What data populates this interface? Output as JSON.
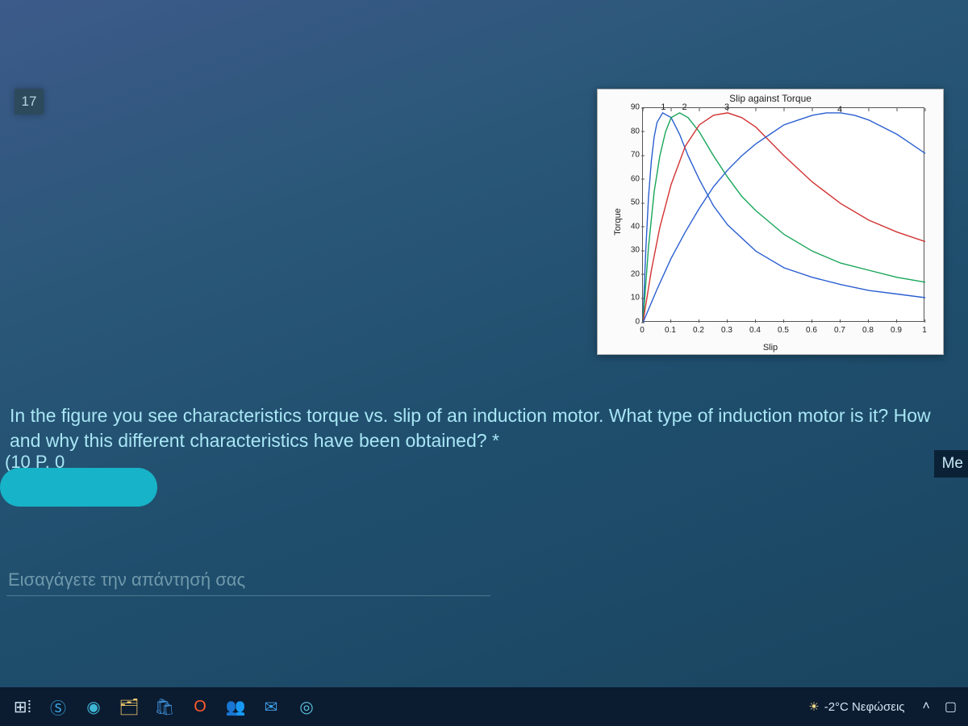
{
  "question": {
    "number": "17",
    "text": "In the figure you see characteristics torque vs. slip of an induction motor. What type of induction motor is it? How and why this different characteristics have been obtained? *",
    "points_fragment": "(10 P.  0",
    "side_tag": "Me",
    "answer_placeholder": "Εισαγάγετε την απάντησή σας"
  },
  "chart": {
    "title": "Slip against Torque",
    "xlabel": "Slip",
    "ylabel": "Torque",
    "xlim": [
      0,
      1
    ],
    "ylim": [
      0,
      90
    ],
    "xticks": [
      0,
      0.1,
      0.2,
      0.3,
      0.4,
      0.5,
      0.6,
      0.7,
      0.8,
      0.9,
      1
    ],
    "xtick_labels": [
      "0",
      "0.1",
      "0.2",
      "0.3",
      "0.4",
      "0.5",
      "0.6",
      "0.7",
      "0.8",
      "0.9",
      "1"
    ],
    "yticks": [
      0,
      10,
      20,
      30,
      40,
      50,
      60,
      70,
      80,
      90
    ],
    "ytick_labels": [
      "0",
      "10",
      "20",
      "30",
      "40",
      "50",
      "60",
      "70",
      "80",
      "90"
    ],
    "background": "#fbfbfc",
    "plot_bg": "#ffffff",
    "axis_color": "#555555",
    "tick_fontsize": 10,
    "label_fontsize": 11,
    "title_fontsize": 12,
    "series_label_color": "#222222",
    "series": [
      {
        "name": "1",
        "label_x": 0.075,
        "label_y": 88,
        "color": "#2a5fd0",
        "width": 1.4,
        "x": [
          0,
          0.01,
          0.02,
          0.03,
          0.04,
          0.05,
          0.07,
          0.1,
          0.13,
          0.16,
          0.2,
          0.25,
          0.3,
          0.4,
          0.5,
          0.6,
          0.7,
          0.8,
          0.9,
          1.0
        ],
        "y": [
          0,
          30,
          53,
          68,
          78,
          84,
          88,
          86,
          79,
          70,
          60,
          49,
          41,
          30,
          23,
          19,
          16,
          13.5,
          12,
          10.5
        ]
      },
      {
        "name": "2",
        "label_x": 0.15,
        "label_y": 88,
        "color": "#18a558",
        "width": 1.4,
        "x": [
          0,
          0.02,
          0.04,
          0.06,
          0.08,
          0.1,
          0.13,
          0.16,
          0.2,
          0.25,
          0.3,
          0.35,
          0.4,
          0.5,
          0.6,
          0.7,
          0.8,
          0.9,
          1.0
        ],
        "y": [
          0,
          32,
          55,
          70,
          80,
          86,
          88,
          86,
          80,
          70,
          61,
          53,
          47,
          37,
          30,
          25,
          22,
          19,
          17
        ]
      },
      {
        "name": "3",
        "label_x": 0.3,
        "label_y": 88,
        "color": "#d23333",
        "width": 1.4,
        "x": [
          0,
          0.03,
          0.06,
          0.1,
          0.15,
          0.2,
          0.25,
          0.3,
          0.35,
          0.4,
          0.45,
          0.5,
          0.6,
          0.7,
          0.8,
          0.9,
          1.0
        ],
        "y": [
          0,
          22,
          40,
          58,
          74,
          83,
          87,
          88,
          86,
          82,
          76,
          70,
          59,
          50,
          43,
          38,
          34
        ]
      },
      {
        "name": "4",
        "label_x": 0.7,
        "label_y": 87,
        "color": "#2a5fd0",
        "width": 1.4,
        "x": [
          0,
          0.05,
          0.1,
          0.15,
          0.2,
          0.25,
          0.3,
          0.35,
          0.4,
          0.45,
          0.5,
          0.55,
          0.6,
          0.65,
          0.7,
          0.75,
          0.8,
          0.85,
          0.9,
          0.95,
          1.0
        ],
        "y": [
          0,
          14,
          27,
          38,
          48,
          57,
          64,
          70,
          75,
          79,
          83,
          85,
          87,
          88,
          88,
          87,
          85,
          82,
          79,
          75,
          71
        ]
      }
    ]
  },
  "taskbar": {
    "weather": "-2°C  Νεφώσεις",
    "icons": [
      {
        "name": "task-view-icon",
        "glyph": "⊞⁞"
      },
      {
        "name": "skype-icon",
        "glyph": "Ⓢ",
        "color": "#3aa7e0"
      },
      {
        "name": "edge-icon",
        "glyph": "◉",
        "color": "#3fb6d6"
      },
      {
        "name": "explorer-icon",
        "glyph": "🗂",
        "color": "#f0c96b"
      },
      {
        "name": "store-icon",
        "glyph": "🛍",
        "color": "#3f8fd6"
      },
      {
        "name": "office-icon",
        "glyph": "O",
        "color": "#ff5b2e"
      },
      {
        "name": "teams-icon",
        "glyph": "👥",
        "color": "#6b73d6"
      },
      {
        "name": "mail-icon",
        "glyph": "✉",
        "color": "#3fa0e8"
      },
      {
        "name": "browser-icon",
        "glyph": "◎",
        "color": "#5bc2e0"
      }
    ]
  }
}
